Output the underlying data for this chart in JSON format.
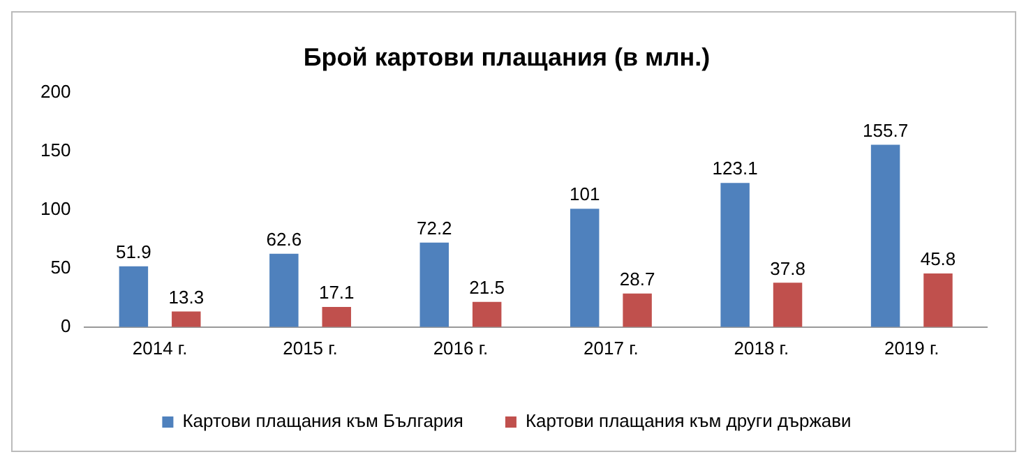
{
  "chart_data": {
    "type": "bar",
    "title": "Брой картови плащания (в млн.)",
    "categories": [
      "2014 г.",
      "2015 г.",
      "2016 г.",
      "2017 г.",
      "2018 г.",
      "2019 г."
    ],
    "series": [
      {
        "name": "Картови плащания към България",
        "color": "#4f81bd",
        "values": [
          51.9,
          62.6,
          72.2,
          101,
          123.1,
          155.7
        ]
      },
      {
        "name": "Картови плащания към други държави",
        "color": "#c0504d",
        "values": [
          13.3,
          17.1,
          21.5,
          28.7,
          37.8,
          45.8
        ]
      }
    ],
    "ylim": [
      0,
      200
    ],
    "yticks": [
      0,
      50,
      100,
      150,
      200
    ],
    "grid": false,
    "legend": "bottom",
    "data_labels": true
  }
}
